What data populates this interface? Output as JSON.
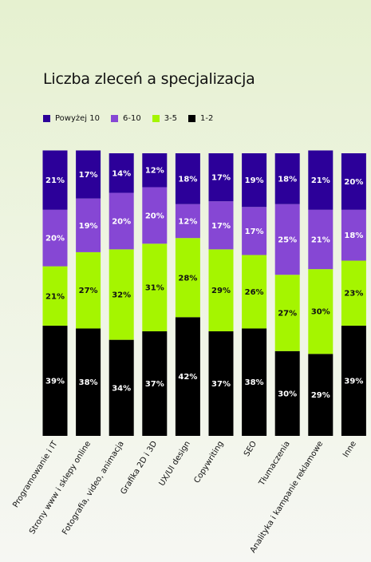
{
  "colors": {
    "powyzej_10": "#2c0099",
    "6_10": "#8647d4",
    "3_5": "#a5f500",
    "1_2": "#000000",
    "background": "#eef4e2"
  },
  "chart_data": {
    "type": "bar",
    "stacked": true,
    "title": "Liczba zleceń a specjalizacja",
    "xlabel": "",
    "ylabel": "",
    "ylim": [
      0,
      100
    ],
    "legend_position": "top-left",
    "grid": false,
    "categories": [
      "Programowanie i IT",
      "Strony www i sklepy online",
      "Fotografia, video, animacja",
      "Grafika 2D i 3D",
      "UX/UI design",
      "Copywriting",
      "SEO",
      "Tłumaczenia",
      "Analityka i kampanie reklamowe",
      "Inne"
    ],
    "series": [
      {
        "name": "1-2",
        "color": "#000000",
        "label_color": "#ffffff",
        "values": [
          39,
          38,
          34,
          37,
          42,
          37,
          38,
          30,
          29,
          39
        ]
      },
      {
        "name": "3-5",
        "color": "#a5f500",
        "label_color": "#111111",
        "values": [
          21,
          27,
          32,
          31,
          28,
          29,
          26,
          27,
          30,
          23
        ]
      },
      {
        "name": "6-10",
        "color": "#8647d4",
        "label_color": "#ffffff",
        "values": [
          20,
          19,
          20,
          20,
          12,
          17,
          17,
          25,
          21,
          18
        ]
      },
      {
        "name": "Powyżej 10",
        "color": "#2c0099",
        "label_color": "#ffffff",
        "values": [
          21,
          17,
          14,
          12,
          18,
          17,
          19,
          18,
          21,
          20
        ]
      }
    ],
    "legend_order": [
      "Powyżej 10",
      "6-10",
      "3-5",
      "1-2"
    ]
  }
}
